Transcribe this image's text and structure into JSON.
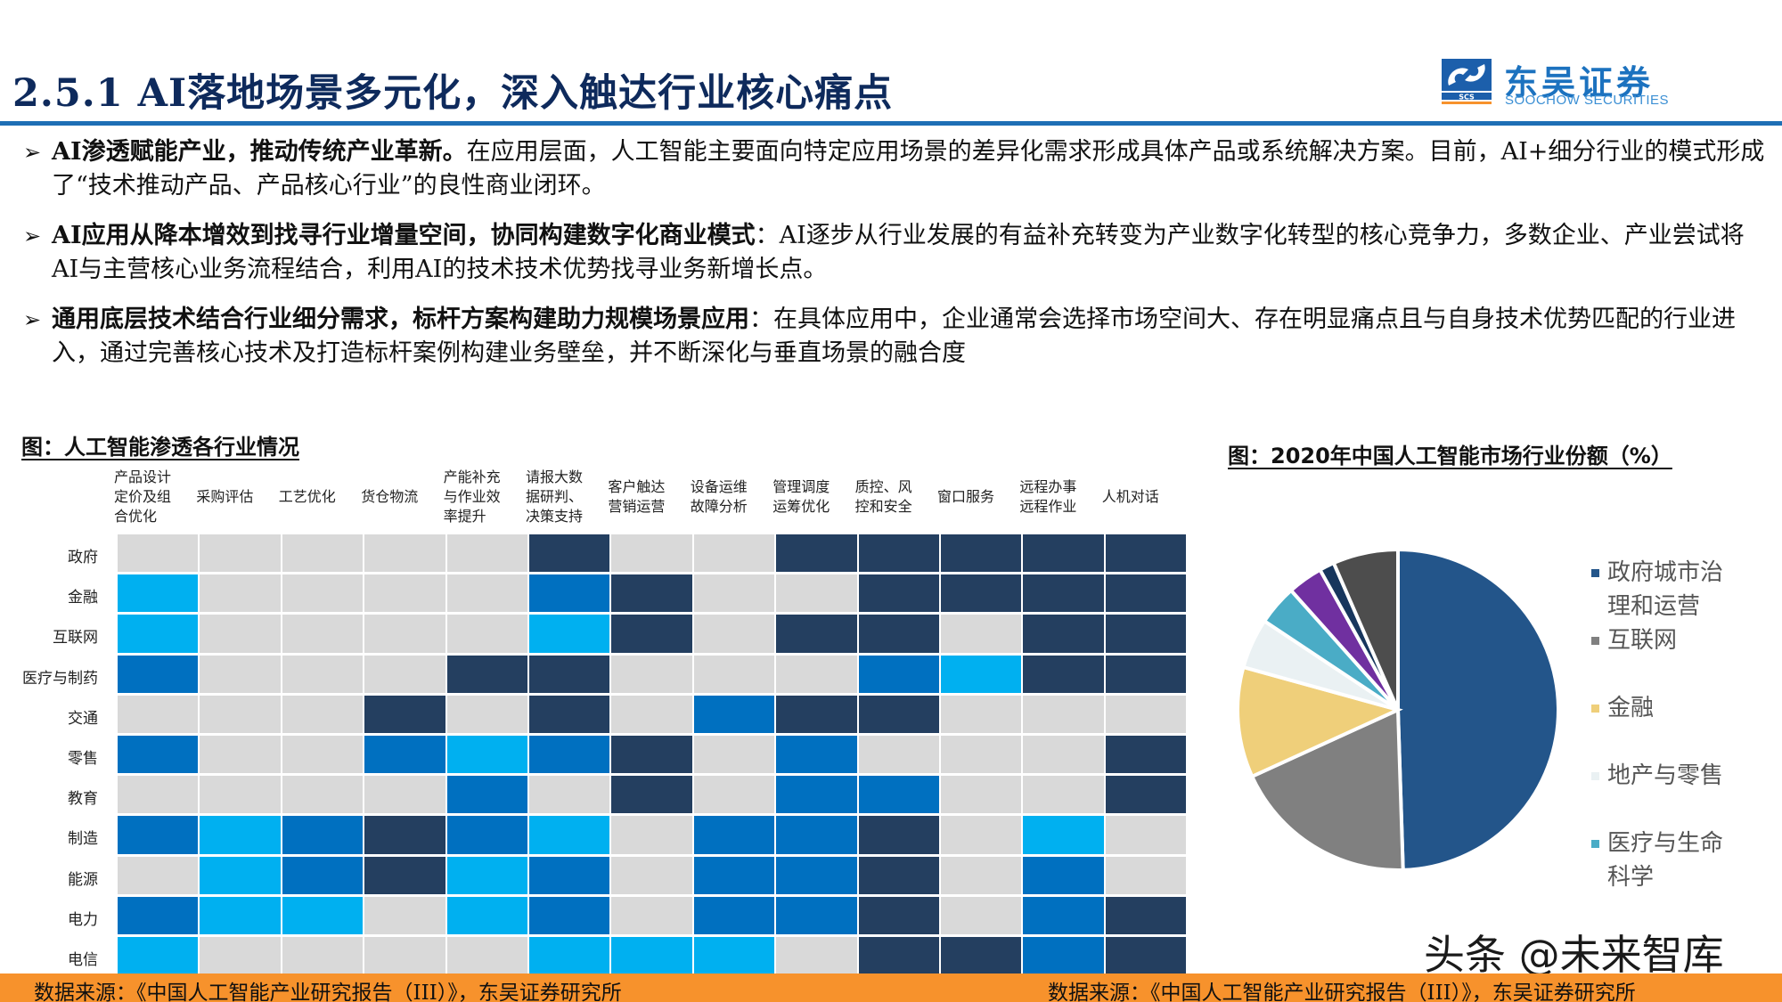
{
  "header": {
    "title": "2.5.1 AI落地场景多元化，深入触达行业核心痛点",
    "logo": {
      "icon": "scs-logo-icon",
      "mark_text": "SCS",
      "name_cn": "东吴证券",
      "name_en": "SOOCHOW SECURITIES"
    }
  },
  "bullets": [
    {
      "bold": "AI渗透赋能产业，推动传统产业革新。",
      "text": "在应用层面，人工智能主要面向特定应用场景的差异化需求形成具体产品或系统解决方案。目前，AI+细分行业的模式形成了“技术推动产品、产品核心行业”的良性商业闭环。"
    },
    {
      "bold": "AI应用从降本增效到找寻行业增量空间，协同构建数字化商业模式",
      "text": "：AI逐步从行业发展的有益补充转变为产业数字化转型的核心竞争力，多数企业、产业尝试将AI与主营核心业务流程结合，利用AI的技术技术优势找寻业务新增长点。"
    },
    {
      "bold": "通用底层技术结合行业细分需求，标杆方案构建助力规模场景应用",
      "text": "：在具体应用中，企业通常会选择市场空间大、存在明显痛点且与自身技术优势匹配的行业进入，通过完善核心技术及打造标杆案例构建业务壁垒，并不断深化与垂直场景的融合度"
    }
  ],
  "bullet_icon": "➢",
  "figures": {
    "left_title": "图：人工智能渗透各行业情况",
    "right_title": "图：2020年中国人工智能市场行业份额（%）"
  },
  "chart_data": [
    {
      "type": "heatmap",
      "title": "图：人工智能渗透各行业情况",
      "x": [
        "产品设计定价及组合优化",
        "采购评估",
        "工艺优化",
        "货仓物流",
        "产能补充与作业效率提升",
        "请报大数据研判、决策支持",
        "客户触达营销运营",
        "设备运维故障分析",
        "管理调度运筹优化",
        "质控、风控和安全",
        "窗口服务",
        "远程办事远程作业",
        "人机对话"
      ],
      "x_display": [
        "产品设计\n定价及组\n合优化",
        "采购评估",
        "工艺优化",
        "货仓物流",
        "产能补充\n与作业效\n率提升",
        "请报大数\n据研判、\n决策支持",
        "客户触达\n营销运营",
        "设备运维\n故障分析",
        "管理调度\n运筹优化",
        "质控、风\n控和安全",
        "窗口服务",
        "远程办事\n远程作业",
        "人机对话"
      ],
      "y": [
        "政府",
        "金融",
        "互联网",
        "医疗与制药",
        "交通",
        "零售",
        "教育",
        "制造",
        "能源",
        "电力",
        "电信"
      ],
      "scale_note": "0=浅灰(未渗透), 1=浅蓝, 2=中蓝, 3=深蓝(渗透程度最高)",
      "colors": [
        "#d9d9d9",
        "#00b0f0",
        "#0070c0",
        "#243f60"
      ],
      "values": [
        [
          0,
          0,
          0,
          0,
          0,
          3,
          0,
          0,
          3,
          3,
          3,
          3,
          3
        ],
        [
          1,
          0,
          0,
          0,
          0,
          2,
          3,
          0,
          0,
          3,
          3,
          3,
          3
        ],
        [
          1,
          0,
          0,
          0,
          0,
          1,
          3,
          0,
          3,
          3,
          0,
          3,
          3
        ],
        [
          2,
          0,
          0,
          0,
          3,
          3,
          0,
          0,
          0,
          2,
          1,
          3,
          3
        ],
        [
          0,
          0,
          0,
          3,
          0,
          3,
          0,
          2,
          3,
          3,
          0,
          0,
          0
        ],
        [
          2,
          0,
          0,
          2,
          1,
          2,
          3,
          0,
          2,
          0,
          0,
          0,
          3
        ],
        [
          0,
          0,
          0,
          0,
          2,
          0,
          3,
          0,
          2,
          2,
          0,
          0,
          3
        ],
        [
          2,
          1,
          2,
          3,
          2,
          1,
          0,
          2,
          2,
          3,
          0,
          1,
          0
        ],
        [
          0,
          1,
          2,
          3,
          1,
          2,
          0,
          2,
          2,
          3,
          0,
          2,
          0
        ],
        [
          2,
          1,
          1,
          0,
          1,
          2,
          0,
          2,
          2,
          3,
          0,
          2,
          3
        ],
        [
          1,
          0,
          0,
          0,
          0,
          1,
          1,
          1,
          0,
          3,
          3,
          2,
          3
        ]
      ]
    },
    {
      "type": "pie",
      "title": "图：2020年中国人工智能市场行业份额（%）",
      "start_angle_deg": 0,
      "direction": "clockwise",
      "categories": [
        "政府城市治理和运营",
        "互联网",
        "金融",
        "地产与零售",
        "医疗与生命科学",
        "其他(紫)",
        "其他(深蓝)",
        "其他(深灰)"
      ],
      "values": [
        49,
        18.5,
        11,
        5,
        4,
        3.5,
        1.5,
        6.5
      ],
      "colors": [
        "#23558a",
        "#808080",
        "#efcf7a",
        "#eaf1f3",
        "#4aacc6",
        "#7030a0",
        "#17365d",
        "#4d4d4d"
      ],
      "legend": {
        "position": "right",
        "entries": [
          "政府城市治理和运营",
          "互联网",
          "金融",
          "地产与零售",
          "医疗与生命科学"
        ]
      }
    }
  ],
  "legend_items": [
    {
      "label": "政府城市治\n理和运营",
      "color": "#23558a"
    },
    {
      "label": "互联网",
      "color": "#808080"
    },
    {
      "label": "金融",
      "color": "#efcf7a"
    },
    {
      "label": "地产与零售",
      "color": "#eaf1f3"
    },
    {
      "label": "医疗与生命\n科学",
      "color": "#4aacc6"
    }
  ],
  "watermark": "头条 @未来智库",
  "footer": {
    "source_left": "数据来源：《中国人工智能产业研究报告（III）》，东吴证券研究所",
    "source_right": "数据来源：《中国人工智能产业研究报告（III）》，东吴证券研究所",
    "background": "#f7922c"
  }
}
